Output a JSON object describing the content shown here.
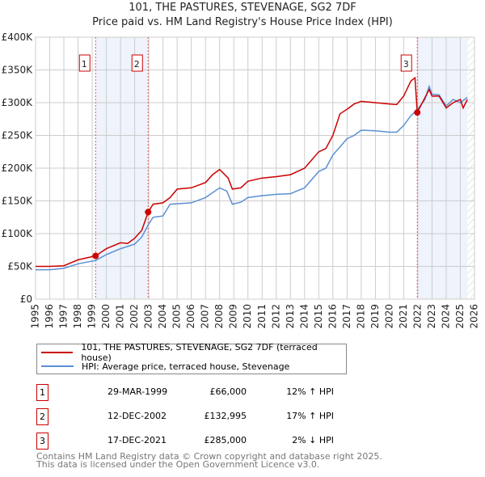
{
  "chart_data": {
    "type": "line",
    "title": "101, THE PASTURES, STEVENAGE, SG2 7DF",
    "subtitle": "Price paid vs. HM Land Registry's House Price Index (HPI)",
    "xlim": [
      1995,
      2026
    ],
    "ylim": [
      0,
      400000
    ],
    "x_ticks": [
      "1995",
      "1996",
      "1997",
      "1998",
      "1999",
      "2000",
      "2001",
      "2002",
      "2003",
      "2004",
      "2005",
      "2006",
      "2007",
      "2008",
      "2009",
      "2010",
      "2011",
      "2012",
      "2013",
      "2014",
      "2015",
      "2016",
      "2017",
      "2018",
      "2019",
      "2020",
      "2021",
      "2022",
      "2023",
      "2024",
      "2025",
      "2026"
    ],
    "y_ticks": [
      {
        "v": 0,
        "label": "£0"
      },
      {
        "v": 50000,
        "label": "£50K"
      },
      {
        "v": 100000,
        "label": "£100K"
      },
      {
        "v": 150000,
        "label": "£150K"
      },
      {
        "v": 200000,
        "label": "£200K"
      },
      {
        "v": 250000,
        "label": "£250K"
      },
      {
        "v": 300000,
        "label": "£300K"
      },
      {
        "v": 350000,
        "label": "£350K"
      },
      {
        "v": 400000,
        "label": "£400K"
      }
    ],
    "grid": true,
    "series": [
      {
        "name": "101, THE PASTURES, STEVENAGE, SG2 7DF (terraced house)",
        "color": "#cc0000",
        "x": [
          1995,
          1996,
          1997,
          1998,
          1999.24,
          2000,
          2001,
          2001.5,
          2002,
          2002.5,
          2002.95,
          2003.3,
          2004,
          2004.5,
          2005,
          2006,
          2007,
          2007.5,
          2008,
          2008.6,
          2008.9,
          2009.5,
          2010,
          2011,
          2012,
          2013,
          2014,
          2015,
          2015.5,
          2016,
          2016.5,
          2017,
          2017.5,
          2018,
          2019,
          2020,
          2020.5,
          2021,
          2021.5,
          2021.8,
          2021.96,
          2022.2,
          2022.8,
          2023,
          2023.5,
          2024,
          2024.5,
          2025,
          2025.2,
          2025.5
        ],
        "y": [
          50000,
          50000,
          51000,
          60000,
          66000,
          77000,
          86000,
          85000,
          93000,
          105000,
          132995,
          145000,
          147000,
          155000,
          168000,
          170000,
          178000,
          190000,
          198000,
          185000,
          168000,
          170000,
          180000,
          185000,
          187000,
          190000,
          200000,
          225000,
          230000,
          250000,
          283000,
          290000,
          298000,
          302000,
          300000,
          298000,
          297000,
          310000,
          333000,
          338000,
          285000,
          295000,
          320000,
          310000,
          310000,
          292000,
          300000,
          305000,
          292000,
          305000
        ]
      },
      {
        "name": "HPI: Average price, terraced house, Stevenage",
        "color": "#5b8fd4",
        "x": [
          1995,
          1996,
          1997,
          1998,
          1999.24,
          2000,
          2001,
          2002,
          2002.5,
          2003,
          2003.3,
          2004,
          2004.5,
          2006,
          2007,
          2008,
          2008.5,
          2008.9,
          2009.5,
          2010,
          2011,
          2012,
          2013,
          2014,
          2015,
          2015.5,
          2016,
          2017,
          2017.5,
          2018,
          2019,
          2020,
          2020.5,
          2021,
          2021.5,
          2022,
          2022.5,
          2022.8,
          2023,
          2023.5,
          2024,
          2024.5,
          2025,
          2025.3,
          2025.5
        ],
        "y": [
          45000,
          45000,
          47000,
          54000,
          59000,
          68000,
          77000,
          84000,
          95000,
          115000,
          125000,
          127000,
          145000,
          147000,
          155000,
          170000,
          165000,
          145000,
          148000,
          155000,
          158000,
          160000,
          161000,
          170000,
          195000,
          200000,
          220000,
          245000,
          250000,
          258000,
          257000,
          255000,
          255000,
          265000,
          280000,
          290000,
          305000,
          325000,
          313000,
          312000,
          295000,
          305000,
          300000,
          305000,
          308000
        ]
      }
    ],
    "sales": [
      {
        "id": "1",
        "x": 1999.24,
        "price": 66000
      },
      {
        "id": "2",
        "x": 2002.95,
        "price": 132995
      },
      {
        "id": "3",
        "x": 2021.96,
        "price": 285000
      }
    ],
    "shaded_ranges": [
      [
        1999.24,
        2002.95
      ],
      [
        2021.96,
        2025.5
      ]
    ],
    "forecast_hatch_from": 2025.5
  },
  "legend": {
    "property": "101, THE PASTURES, STEVENAGE, SG2 7DF (terraced house)",
    "hpi": "HPI: Average price, terraced house, Stevenage"
  },
  "transactions": [
    {
      "num": "1",
      "date": "29-MAR-1999",
      "price": "£66,000",
      "pct": "12% ↑ HPI"
    },
    {
      "num": "2",
      "date": "12-DEC-2002",
      "price": "£132,995",
      "pct": "17% ↑ HPI"
    },
    {
      "num": "3",
      "date": "17-DEC-2021",
      "price": "£285,000",
      "pct": "2% ↓ HPI"
    }
  ],
  "footer": {
    "line1": "Contains HM Land Registry data © Crown copyright and database right 2025.",
    "line2": "This data is licensed under the Open Government Licence v3.0."
  }
}
